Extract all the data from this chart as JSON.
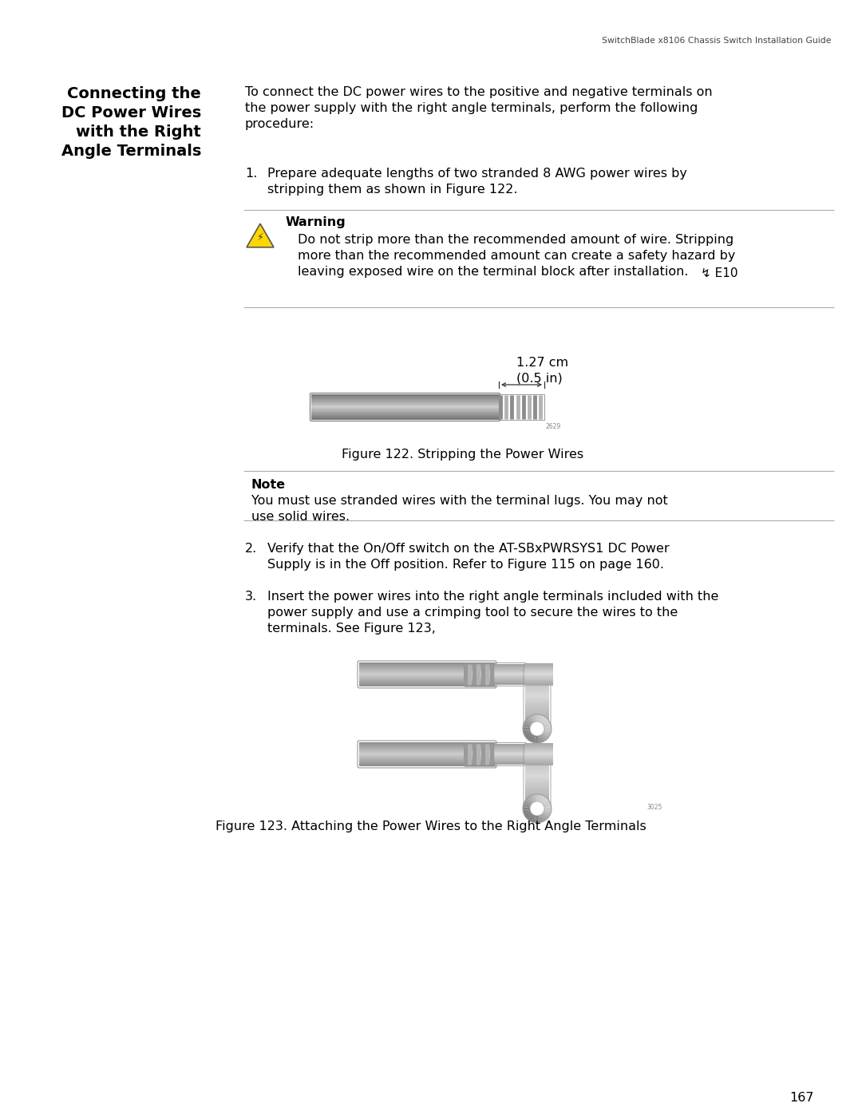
{
  "page_header": "SwitchBlade x8106 Chassis Switch Installation Guide",
  "sec_title": [
    "Connecting the",
    "DC Power Wires",
    "with the Right",
    "Angle Terminals"
  ],
  "intro": [
    "To connect the DC power wires to the positive and negative terminals on",
    "the power supply with the right angle terminals, perform the following",
    "procedure:"
  ],
  "step1": [
    "Prepare adequate lengths of two stranded 8 AWG power wires by",
    "stripping them as shown in Figure 122."
  ],
  "warn_title": "Warning",
  "warn_body": [
    "Do not strip more than the recommended amount of wire. Stripping",
    "more than the recommended amount can create a safety hazard by",
    "leaving exposed wire on the terminal block after installation."
  ],
  "warn_ref": " E10",
  "fig122_dim": "1.27 cm\n(0.5 in)",
  "fig122_cap": "Figure 122. Stripping the Power Wires",
  "note_title": "Note",
  "note_body": [
    "You must use stranded wires with the terminal lugs. You may not",
    "use solid wires."
  ],
  "step2": [
    "Verify that the On/Off switch on the AT-SBxPWRSYS1 DC Power",
    "Supply is in the Off position. Refer to Figure 115 on page 160."
  ],
  "step3": [
    "Insert the power wires into the right angle terminals included with the",
    "power supply and use a crimping tool to secure the wires to the",
    "terminals. See Figure 123,"
  ],
  "fig123_cap": "Figure 123. Attaching the Power Wires to the Right Angle Terminals",
  "page_num": "167",
  "bg": "#ffffff",
  "fg": "#000000",
  "lc": "#aaaaaa"
}
